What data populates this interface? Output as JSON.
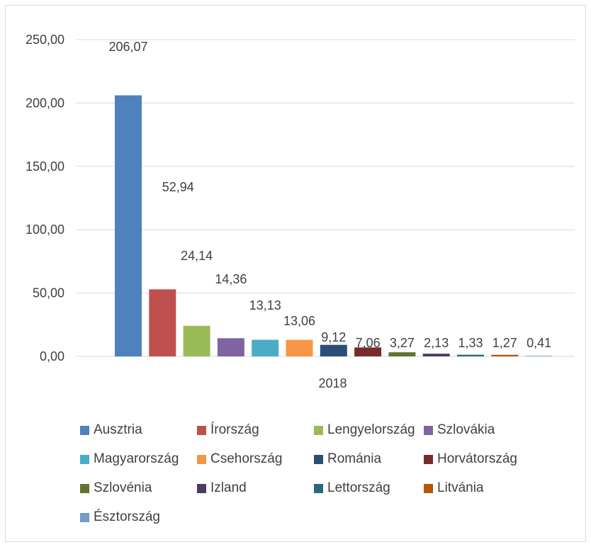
{
  "chart_data": {
    "type": "bar",
    "categories": [
      "2018"
    ],
    "y_ticks": [
      "0,00",
      "50,00",
      "100,00",
      "150,00",
      "200,00",
      "250,00"
    ],
    "ylim": [
      0,
      250
    ],
    "grid": true,
    "legend_position": "bottom",
    "series": [
      {
        "name": "Ausztria",
        "value": 206.07,
        "label": "206,07",
        "color": "#4f81bd"
      },
      {
        "name": "Írország",
        "value": 52.94,
        "label": "52,94",
        "color": "#c0504d"
      },
      {
        "name": "Lengyelország",
        "value": 24.14,
        "label": "24,14",
        "color": "#9bbb59"
      },
      {
        "name": "Szlovákia",
        "value": 14.36,
        "label": "14,36",
        "color": "#8064a2"
      },
      {
        "name": "Magyarország",
        "value": 13.13,
        "label": "13,13",
        "color": "#4bacc6"
      },
      {
        "name": "Csehország",
        "value": 13.06,
        "label": "13,06",
        "color": "#f79646"
      },
      {
        "name": "Románia",
        "value": 9.12,
        "label": "9,12",
        "color": "#2c4d75"
      },
      {
        "name": "Horvátország",
        "value": 7.06,
        "label": "7,06",
        "color": "#772c2a"
      },
      {
        "name": "Szlovénia",
        "value": 3.27,
        "label": "3,27",
        "color": "#5f7530"
      },
      {
        "name": "Izland",
        "value": 2.13,
        "label": "2,13",
        "color": "#4d3b62"
      },
      {
        "name": "Lettország",
        "value": 1.33,
        "label": "1,33",
        "color": "#276a7c"
      },
      {
        "name": "Litvánia",
        "value": 1.27,
        "label": "1,27",
        "color": "#b65708"
      },
      {
        "name": "Észtország",
        "value": 0.41,
        "label": "0,41",
        "color": "#729aca"
      }
    ]
  }
}
